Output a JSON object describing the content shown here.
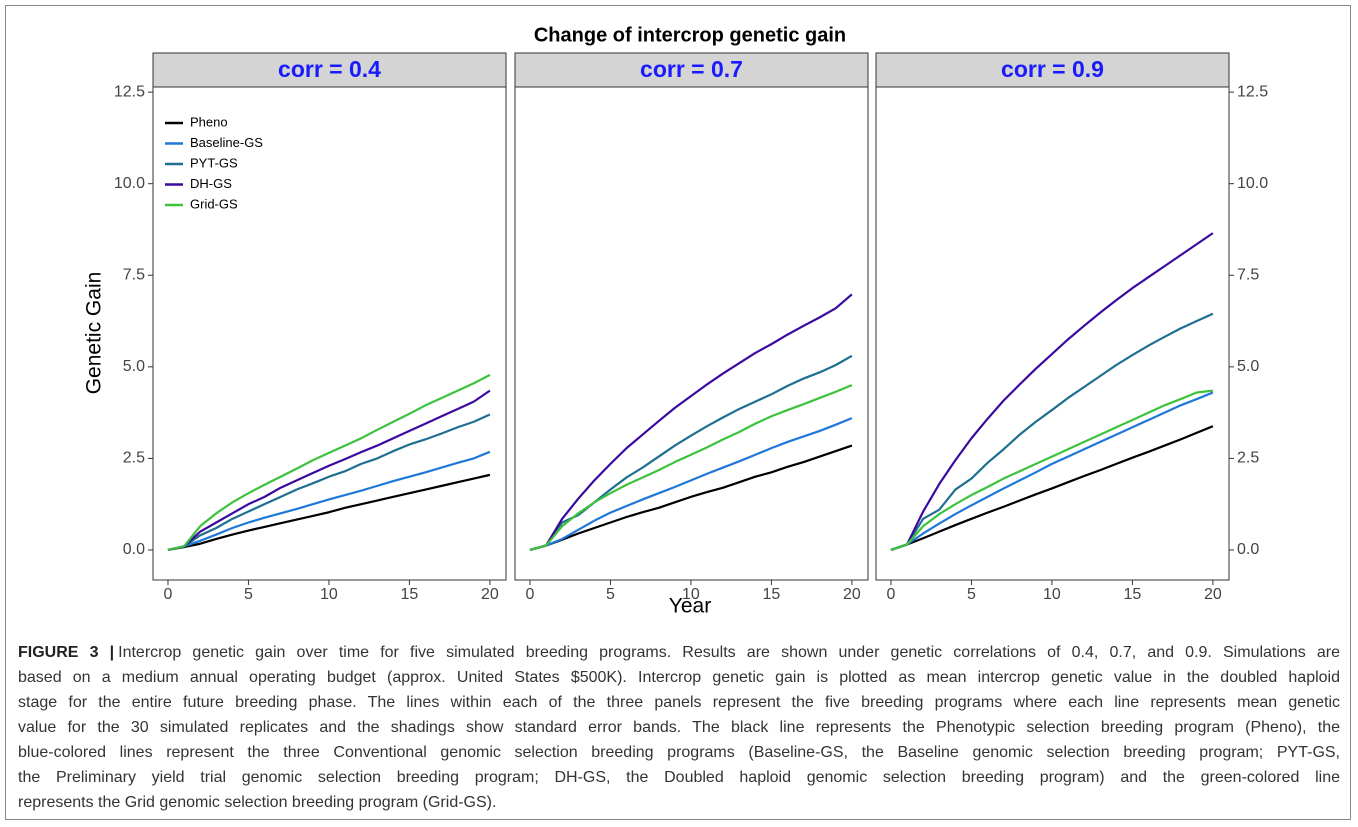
{
  "figure": {
    "title": "Change of intercrop genetic gain",
    "xlabel": "Year",
    "ylabel": "Genetic Gain"
  },
  "chart_data": [
    {
      "type": "line",
      "panel_title": "corr = 0.4",
      "legend": "top-left",
      "y_axis_side": "left",
      "x": [
        0,
        1,
        2,
        3,
        4,
        5,
        6,
        7,
        8,
        9,
        10,
        11,
        12,
        13,
        14,
        15,
        16,
        17,
        18,
        19,
        20
      ],
      "xlim": [
        -0.93,
        21
      ],
      "xticks": [
        0,
        5,
        10,
        15,
        20
      ],
      "ylim": [
        -0.82,
        12.64
      ],
      "yticks": [
        {
          "value": 0,
          "label": "0.0"
        },
        2.5,
        {
          "value": 5,
          "label": "5.0"
        },
        7.5,
        {
          "value": 10,
          "label": "10.0"
        },
        12.5
      ],
      "series": [
        {
          "name": "Pheno",
          "color": "#000000",
          "values": [
            0,
            0.08,
            0.17,
            0.3,
            0.42,
            0.53,
            0.63,
            0.73,
            0.83,
            0.93,
            1.03,
            1.15,
            1.25,
            1.35,
            1.45,
            1.55,
            1.65,
            1.75,
            1.85,
            1.95,
            2.05
          ]
        },
        {
          "name": "Baseline-GS",
          "color": "#1f78d8",
          "values": [
            0,
            0.1,
            0.25,
            0.42,
            0.6,
            0.75,
            0.88,
            1.0,
            1.12,
            1.25,
            1.38,
            1.5,
            1.62,
            1.75,
            1.88,
            2.0,
            2.12,
            2.25,
            2.38,
            2.5,
            2.68
          ]
        },
        {
          "name": "PYT-GS",
          "color": "#1f6f91",
          "values": [
            0,
            0.1,
            0.4,
            0.6,
            0.85,
            1.05,
            1.25,
            1.45,
            1.65,
            1.82,
            2.0,
            2.15,
            2.35,
            2.5,
            2.7,
            2.88,
            3.02,
            3.18,
            3.35,
            3.5,
            3.7
          ]
        },
        {
          "name": "DH-GS",
          "color": "#3a0aa0",
          "values": [
            0,
            0.1,
            0.5,
            0.75,
            1.0,
            1.25,
            1.45,
            1.7,
            1.9,
            2.1,
            2.3,
            2.48,
            2.67,
            2.85,
            3.05,
            3.25,
            3.45,
            3.65,
            3.85,
            4.05,
            4.35
          ]
        },
        {
          "name": "Grid-GS",
          "color": "#3cc23c",
          "values": [
            0,
            0.1,
            0.65,
            1.0,
            1.3,
            1.55,
            1.78,
            2.0,
            2.22,
            2.45,
            2.65,
            2.85,
            3.05,
            3.28,
            3.5,
            3.72,
            3.95,
            4.15,
            4.35,
            4.55,
            4.78
          ]
        }
      ]
    },
    {
      "type": "line",
      "panel_title": "corr = 0.7",
      "x": [
        0,
        1,
        2,
        3,
        4,
        5,
        6,
        7,
        8,
        9,
        10,
        11,
        12,
        13,
        14,
        15,
        16,
        17,
        18,
        19,
        20
      ],
      "xlim": [
        -0.93,
        21
      ],
      "xticks": [
        0,
        5,
        10,
        15,
        20
      ],
      "ylim": [
        -0.82,
        12.64
      ],
      "series": [
        {
          "name": "Pheno",
          "color": "#000000",
          "values": [
            0,
            0.12,
            0.28,
            0.45,
            0.6,
            0.75,
            0.9,
            1.03,
            1.15,
            1.3,
            1.45,
            1.58,
            1.7,
            1.85,
            2.0,
            2.12,
            2.27,
            2.4,
            2.55,
            2.7,
            2.85
          ]
        },
        {
          "name": "Baseline-GS",
          "color": "#1f78d8",
          "values": [
            0,
            0.12,
            0.3,
            0.55,
            0.8,
            1.02,
            1.2,
            1.38,
            1.55,
            1.72,
            1.9,
            2.08,
            2.25,
            2.42,
            2.6,
            2.78,
            2.95,
            3.1,
            3.25,
            3.42,
            3.6
          ]
        },
        {
          "name": "PYT-GS",
          "color": "#1f6f91",
          "values": [
            0,
            0.12,
            0.75,
            0.95,
            1.3,
            1.65,
            1.98,
            2.25,
            2.55,
            2.85,
            3.12,
            3.38,
            3.62,
            3.85,
            4.05,
            4.25,
            4.48,
            4.68,
            4.85,
            5.05,
            5.3
          ]
        },
        {
          "name": "DH-GS",
          "color": "#3a0aa0",
          "values": [
            0,
            0.12,
            0.85,
            1.4,
            1.9,
            2.35,
            2.78,
            3.15,
            3.52,
            3.88,
            4.2,
            4.52,
            4.82,
            5.1,
            5.38,
            5.62,
            5.88,
            6.12,
            6.35,
            6.6,
            6.98
          ]
        },
        {
          "name": "Grid-GS",
          "color": "#3cc23c",
          "values": [
            0,
            0.12,
            0.65,
            1.0,
            1.3,
            1.55,
            1.78,
            1.98,
            2.18,
            2.4,
            2.6,
            2.8,
            3.02,
            3.22,
            3.45,
            3.65,
            3.82,
            3.98,
            4.15,
            4.32,
            4.5
          ]
        }
      ]
    },
    {
      "type": "line",
      "panel_title": "corr = 0.9",
      "y_axis_side": "right",
      "x": [
        0,
        1,
        2,
        3,
        4,
        5,
        6,
        7,
        8,
        9,
        10,
        11,
        12,
        13,
        14,
        15,
        16,
        17,
        18,
        19,
        20
      ],
      "xlim": [
        -0.93,
        21
      ],
      "xticks": [
        0,
        5,
        10,
        15,
        20
      ],
      "ylim": [
        -0.82,
        12.64
      ],
      "yticks": [
        {
          "value": 0,
          "label": "0.0"
        },
        2.5,
        {
          "value": 5,
          "label": "5.0"
        },
        7.5,
        {
          "value": 10,
          "label": "10.0"
        },
        12.5
      ],
      "series": [
        {
          "name": "Pheno",
          "color": "#000000",
          "values": [
            0,
            0.15,
            0.32,
            0.5,
            0.68,
            0.85,
            1.02,
            1.18,
            1.35,
            1.52,
            1.68,
            1.85,
            2.02,
            2.18,
            2.35,
            2.52,
            2.68,
            2.85,
            3.02,
            3.2,
            3.38
          ]
        },
        {
          "name": "Baseline-GS",
          "color": "#1f78d8",
          "values": [
            0,
            0.15,
            0.45,
            0.72,
            0.98,
            1.22,
            1.45,
            1.68,
            1.9,
            2.12,
            2.35,
            2.55,
            2.75,
            2.95,
            3.15,
            3.35,
            3.55,
            3.75,
            3.95,
            4.12,
            4.3
          ]
        },
        {
          "name": "PYT-GS",
          "color": "#1f6f91",
          "values": [
            0,
            0.15,
            0.85,
            1.1,
            1.65,
            1.95,
            2.38,
            2.75,
            3.15,
            3.5,
            3.82,
            4.15,
            4.45,
            4.75,
            5.05,
            5.32,
            5.58,
            5.82,
            6.05,
            6.25,
            6.45
          ]
        },
        {
          "name": "DH-GS",
          "color": "#3a0aa0",
          "values": [
            0,
            0.15,
            1.05,
            1.8,
            2.45,
            3.05,
            3.58,
            4.08,
            4.52,
            4.95,
            5.35,
            5.75,
            6.12,
            6.48,
            6.82,
            7.15,
            7.45,
            7.75,
            8.05,
            8.35,
            8.65
          ]
        },
        {
          "name": "Grid-GS",
          "color": "#3cc23c",
          "values": [
            0,
            0.15,
            0.65,
            0.98,
            1.25,
            1.5,
            1.72,
            1.95,
            2.15,
            2.35,
            2.55,
            2.75,
            2.95,
            3.15,
            3.35,
            3.55,
            3.75,
            3.95,
            4.12,
            4.3,
            4.35
          ]
        }
      ]
    }
  ],
  "caption": {
    "label": "FIGURE 3 |",
    "lines": [
      "Intercrop genetic gain over time for five simulated breeding programs. Results are shown under genetic correlations of 0.4, 0.7, and 0.9. Simulations are",
      "based on a medium annual operating budget (approx. United States $500K). Intercrop genetic gain is plotted as mean intercrop genetic value in the doubled haploid",
      "stage for the entire future breeding phase. The lines within each of the three panels represent the five breeding programs where each line represents mean genetic",
      "value for the 30 simulated replicates and the shadings show standard error bands. The black line represents the Phenotypic selection breeding program (Pheno), the",
      "blue-colored lines represent the three Conventional genomic selection breeding programs (Baseline-GS, the Baseline genomic selection breeding program; PYT-GS,",
      "the Preliminary yield trial genomic selection breeding program; DH-GS, the Doubled haploid genomic selection breeding program) and the green-colored line",
      "represents the Grid genomic selection breeding program (Grid-GS)."
    ]
  }
}
